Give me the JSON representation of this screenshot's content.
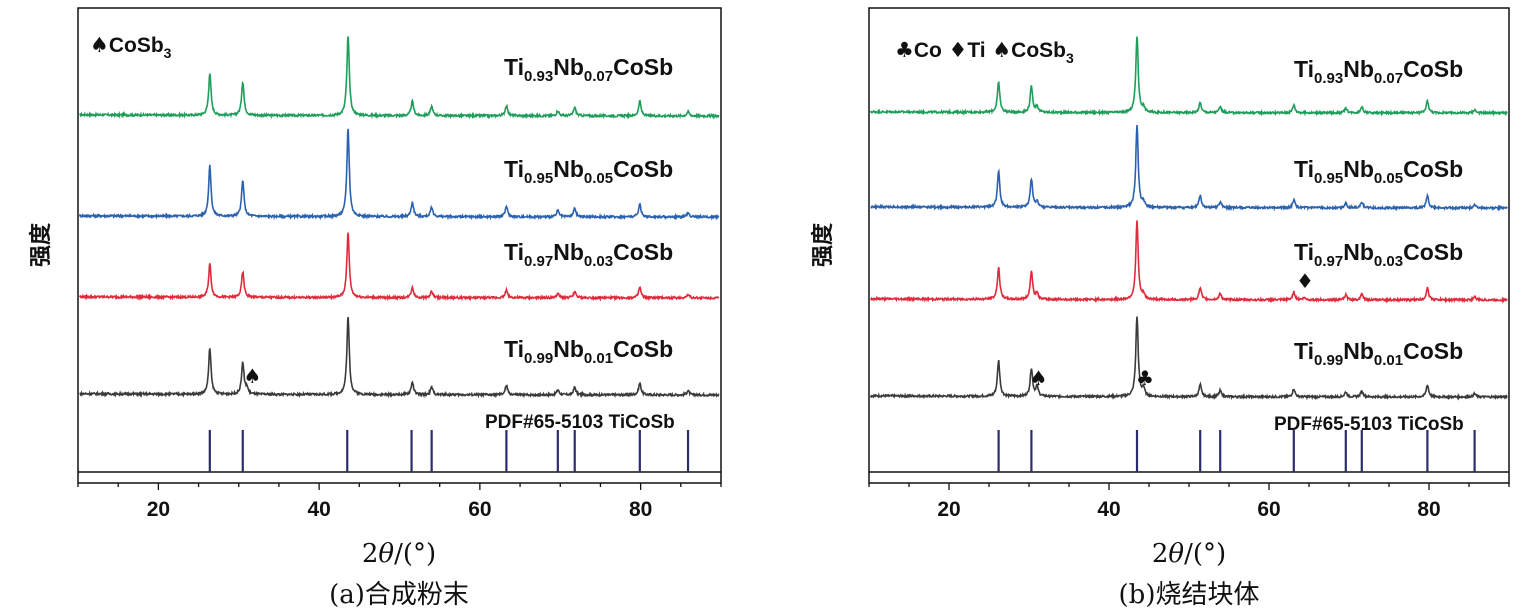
{
  "chart_data": [
    {
      "type": "line",
      "panel": "a",
      "caption": "(a)合成粉末",
      "xlabel": "2θ/(°)",
      "ylabel": "强度",
      "xlim": [
        10,
        90
      ],
      "xticks": [
        20,
        40,
        60,
        80
      ],
      "legend": [
        {
          "symbol": "♠",
          "name": "CoSb",
          "sub": "3"
        }
      ],
      "reference": {
        "label": "PDF#65-5103 TiCoSb",
        "color": "#2b2b6e",
        "peaks": [
          26.4,
          30.5,
          43.5,
          51.5,
          54.0,
          63.3,
          69.7,
          71.8,
          79.9,
          85.9
        ]
      },
      "series": [
        {
          "name": "Ti0.93Nb0.07CoSb",
          "label": {
            "a": "Ti",
            "s1": "0.93",
            "b": "Nb",
            "s2": "0.07",
            "c": "CoSb"
          },
          "color": "#1e9e5a",
          "peaks": [
            [
              26.4,
              1.0
            ],
            [
              30.5,
              0.8
            ],
            [
              43.6,
              1.9
            ],
            [
              51.6,
              0.35
            ],
            [
              54.0,
              0.22
            ],
            [
              63.3,
              0.25
            ],
            [
              69.7,
              0.12
            ],
            [
              71.8,
              0.2
            ],
            [
              79.9,
              0.35
            ],
            [
              85.9,
              0.1
            ]
          ]
        },
        {
          "name": "Ti0.95Nb0.05CoSb",
          "label": {
            "a": "Ti",
            "s1": "0.95",
            "b": "Nb",
            "s2": "0.05",
            "c": "CoSb"
          },
          "color": "#2a62b0",
          "peaks": [
            [
              26.4,
              1.2
            ],
            [
              30.5,
              0.85
            ],
            [
              43.6,
              2.1
            ],
            [
              51.6,
              0.35
            ],
            [
              54.0,
              0.22
            ],
            [
              63.3,
              0.25
            ],
            [
              69.7,
              0.15
            ],
            [
              71.8,
              0.2
            ],
            [
              79.9,
              0.3
            ],
            [
              85.9,
              0.1
            ]
          ]
        },
        {
          "name": "Ti0.97Nb0.03CoSb",
          "label": {
            "a": "Ti",
            "s1": "0.97",
            "b": "Nb",
            "s2": "0.03",
            "c": "CoSb"
          },
          "color": "#e02b3c",
          "peaks": [
            [
              26.4,
              0.8
            ],
            [
              30.5,
              0.6
            ],
            [
              43.6,
              1.55
            ],
            [
              51.6,
              0.25
            ],
            [
              54.0,
              0.15
            ],
            [
              63.3,
              0.18
            ],
            [
              69.7,
              0.1
            ],
            [
              71.8,
              0.15
            ],
            [
              79.9,
              0.25
            ],
            [
              85.9,
              0.08
            ]
          ]
        },
        {
          "name": "Ti0.99Nb0.01CoSb",
          "label": {
            "a": "Ti",
            "s1": "0.99",
            "b": "Nb",
            "s2": "0.01",
            "c": "CoSb"
          },
          "color": "#3a3a3a",
          "peaks": [
            [
              26.4,
              1.1
            ],
            [
              30.5,
              0.75
            ],
            [
              31.0,
              0.15
            ],
            [
              43.6,
              1.85
            ],
            [
              51.6,
              0.3
            ],
            [
              54.0,
              0.18
            ],
            [
              63.3,
              0.22
            ],
            [
              69.7,
              0.12
            ],
            [
              71.8,
              0.18
            ],
            [
              79.9,
              0.28
            ],
            [
              85.9,
              0.1
            ]
          ]
        }
      ],
      "annotations": [
        {
          "symbol": "♠",
          "series": "Ti0.99Nb0.01CoSb",
          "x": 31.7
        }
      ]
    },
    {
      "type": "line",
      "panel": "b",
      "caption": "(b)烧结块体",
      "xlabel": "2θ/(°)",
      "ylabel": "强度",
      "xlim": [
        10,
        90
      ],
      "xticks": [
        20,
        40,
        60,
        80
      ],
      "legend": [
        {
          "symbol": "♣",
          "name": "Co",
          "sub": ""
        },
        {
          "symbol": "♦",
          "name": "Ti",
          "sub": ""
        },
        {
          "symbol": "♠",
          "name": "CoSb",
          "sub": "3"
        }
      ],
      "reference": {
        "label": "PDF#65-5103 TiCoSb",
        "color": "#2b2b6e",
        "peaks": [
          26.2,
          30.3,
          43.5,
          51.4,
          53.9,
          63.1,
          69.6,
          71.6,
          79.8,
          85.7
        ]
      },
      "series": [
        {
          "name": "Ti0.93Nb0.07CoSb",
          "label": {
            "a": "Ti",
            "s1": "0.93",
            "b": "Nb",
            "s2": "0.07",
            "c": "CoSb"
          },
          "color": "#1e9e5a",
          "peaks": [
            [
              26.2,
              0.75
            ],
            [
              30.3,
              0.65
            ],
            [
              31.0,
              0.15
            ],
            [
              43.5,
              1.9
            ],
            [
              44.3,
              0.12
            ],
            [
              51.4,
              0.25
            ],
            [
              53.9,
              0.15
            ],
            [
              63.1,
              0.2
            ],
            [
              69.6,
              0.12
            ],
            [
              71.6,
              0.15
            ],
            [
              79.8,
              0.3
            ],
            [
              85.7,
              0.08
            ]
          ]
        },
        {
          "name": "Ti0.95Nb0.05CoSb",
          "label": {
            "a": "Ti",
            "s1": "0.95",
            "b": "Nb",
            "s2": "0.05",
            "c": "CoSb"
          },
          "color": "#2a62b0",
          "peaks": [
            [
              26.2,
              0.9
            ],
            [
              30.3,
              0.7
            ],
            [
              31.0,
              0.15
            ],
            [
              43.5,
              2.05
            ],
            [
              44.3,
              0.12
            ],
            [
              51.4,
              0.3
            ],
            [
              53.9,
              0.15
            ],
            [
              63.1,
              0.2
            ],
            [
              69.6,
              0.12
            ],
            [
              71.6,
              0.15
            ],
            [
              79.8,
              0.3
            ],
            [
              85.7,
              0.08
            ]
          ]
        },
        {
          "name": "Ti0.97Nb0.03CoSb",
          "label": {
            "a": "Ti",
            "s1": "0.97",
            "b": "Nb",
            "s2": "0.03",
            "c": "CoSb"
          },
          "color": "#e02b3c",
          "peaks": [
            [
              26.2,
              0.8
            ],
            [
              30.3,
              0.7
            ],
            [
              31.0,
              0.15
            ],
            [
              43.5,
              1.95
            ],
            [
              44.3,
              0.12
            ],
            [
              51.4,
              0.3
            ],
            [
              53.9,
              0.15
            ],
            [
              63.1,
              0.2
            ],
            [
              64.4,
              0.05
            ],
            [
              69.6,
              0.12
            ],
            [
              71.6,
              0.15
            ],
            [
              79.8,
              0.3
            ],
            [
              85.7,
              0.08
            ]
          ]
        },
        {
          "name": "Ti0.99Nb0.01CoSb",
          "label": {
            "a": "Ti",
            "s1": "0.99",
            "b": "Nb",
            "s2": "0.01",
            "c": "CoSb"
          },
          "color": "#3a3a3a",
          "peaks": [
            [
              26.2,
              0.9
            ],
            [
              30.3,
              0.7
            ],
            [
              31.0,
              0.25
            ],
            [
              43.5,
              2.0
            ],
            [
              44.3,
              0.2
            ],
            [
              51.4,
              0.3
            ],
            [
              53.9,
              0.15
            ],
            [
              63.1,
              0.2
            ],
            [
              69.6,
              0.12
            ],
            [
              71.6,
              0.15
            ],
            [
              79.8,
              0.3
            ],
            [
              85.7,
              0.08
            ]
          ]
        }
      ],
      "annotations": [
        {
          "symbol": "♦",
          "series": "Ti0.97Nb0.03CoSb",
          "x": 64.5
        },
        {
          "symbol": "♠",
          "series": "Ti0.99Nb0.01CoSb",
          "x": 31.2
        },
        {
          "symbol": "♣",
          "series": "Ti0.99Nb0.01CoSb",
          "x": 44.5
        }
      ]
    }
  ]
}
